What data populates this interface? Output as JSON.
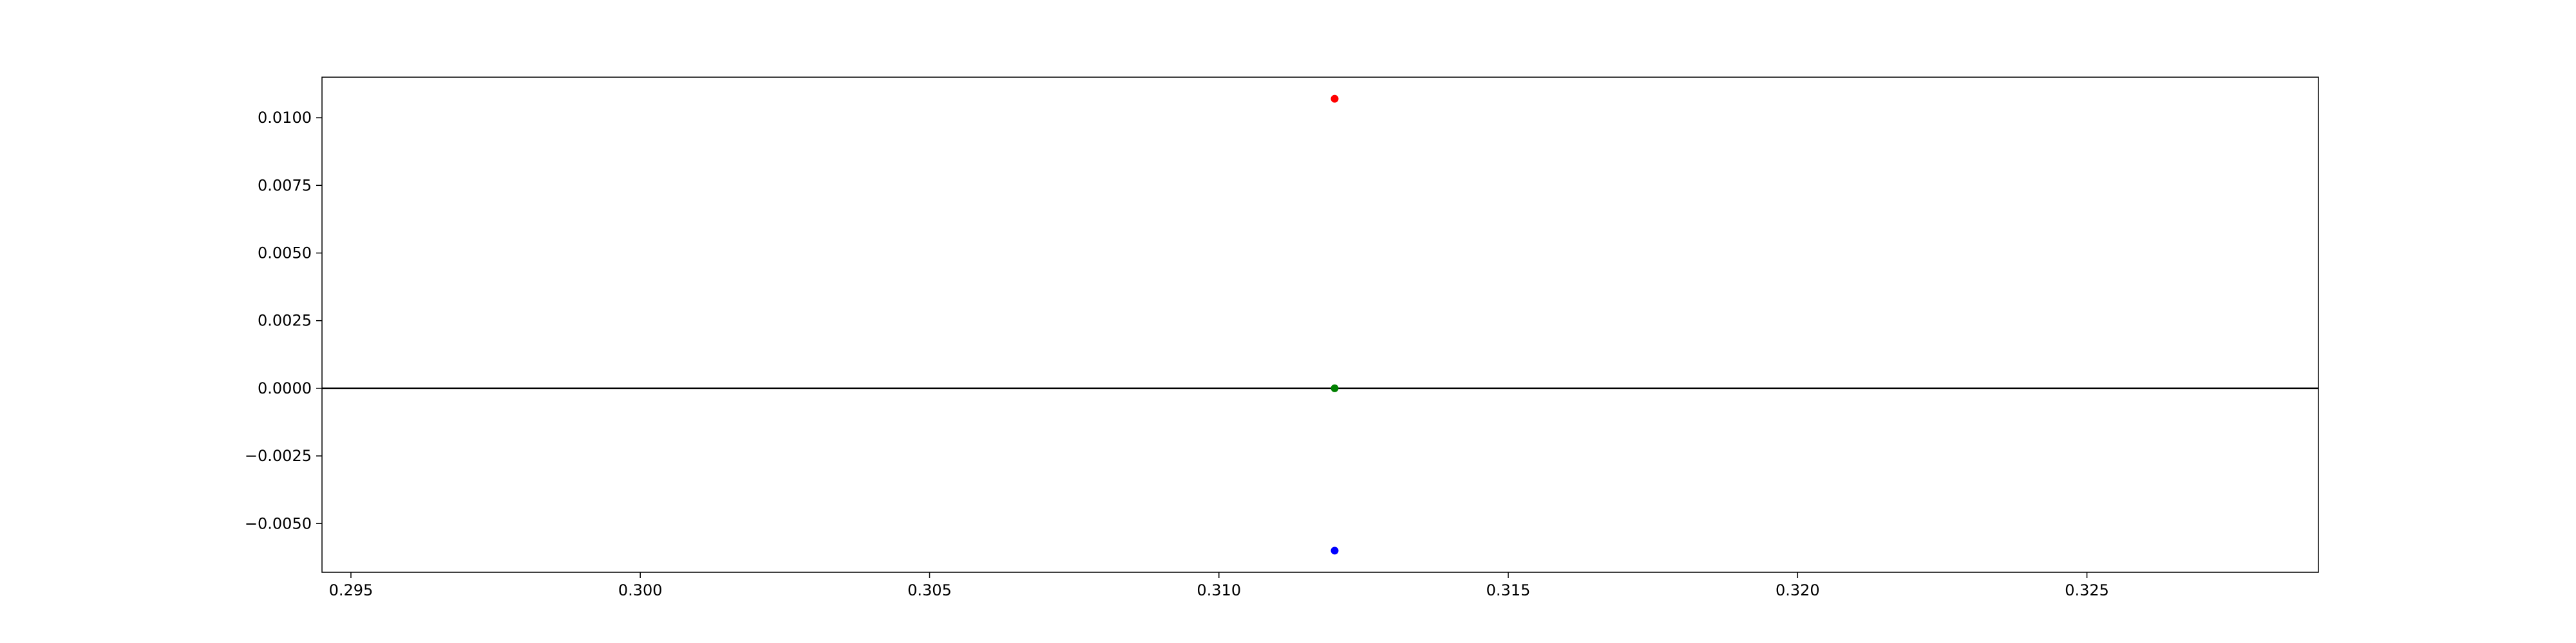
{
  "chart_data": {
    "type": "scatter",
    "title": "",
    "xlabel": "",
    "ylabel": "",
    "xlim": [
      0.2945,
      0.329
    ],
    "ylim": [
      -0.0068,
      0.0115
    ],
    "x_ticks": [
      0.295,
      0.3,
      0.305,
      0.31,
      0.315,
      0.32,
      0.325
    ],
    "x_tick_labels": [
      "0.295",
      "0.300",
      "0.305",
      "0.310",
      "0.315",
      "0.320",
      "0.325"
    ],
    "y_ticks": [
      0.01,
      0.0075,
      0.005,
      0.0025,
      0.0,
      -0.0025,
      -0.005
    ],
    "y_tick_labels": [
      "0.0100",
      "0.0075",
      "0.0050",
      "0.0025",
      "0.0000",
      "−0.0025",
      "−0.0050"
    ],
    "grid": false,
    "reference_line": {
      "y": 0.0,
      "color": "#000000"
    },
    "points": [
      {
        "x": 0.312,
        "y": 0.0107,
        "color": "#ff0000"
      },
      {
        "x": 0.312,
        "y": 0.0,
        "color": "#008000"
      },
      {
        "x": 0.312,
        "y": -0.006,
        "color": "#0000ff"
      }
    ]
  }
}
